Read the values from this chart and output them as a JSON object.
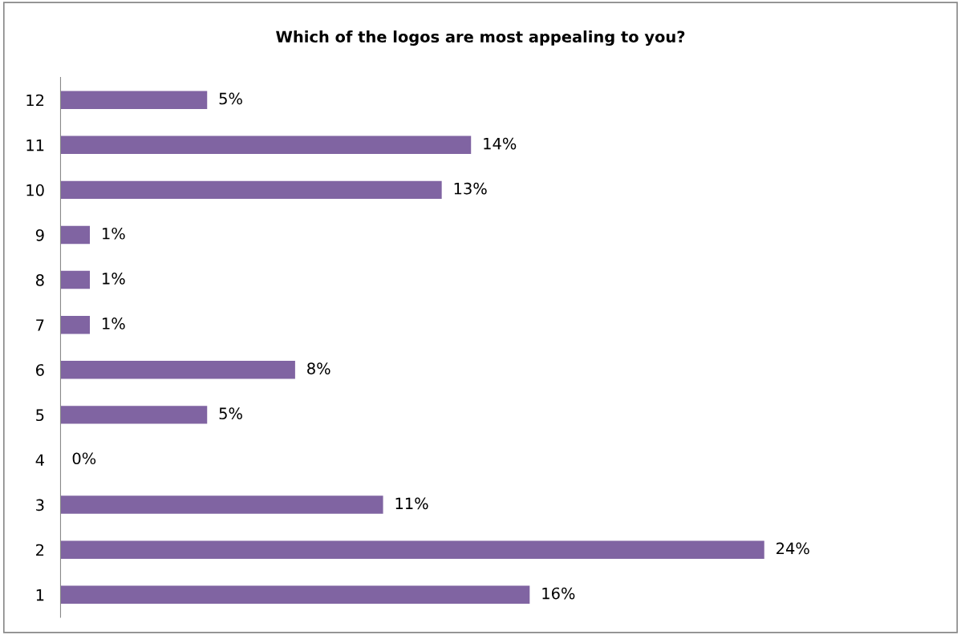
{
  "chart_data": {
    "type": "bar",
    "orientation": "horizontal",
    "title": "Which of the logos are most appealing to you?",
    "categories": [
      "12",
      "11",
      "10",
      "9",
      "8",
      "7",
      "6",
      "5",
      "4",
      "3",
      "2",
      "1"
    ],
    "values": [
      5,
      14,
      13,
      1,
      1,
      1,
      8,
      5,
      0,
      11,
      24,
      16
    ],
    "value_labels": [
      "5%",
      "14%",
      "13%",
      "1%",
      "1%",
      "1%",
      "8%",
      "5%",
      "0%",
      "11%",
      "24%",
      "16%"
    ],
    "color": "#8064a2",
    "grid": false,
    "legend": false
  }
}
